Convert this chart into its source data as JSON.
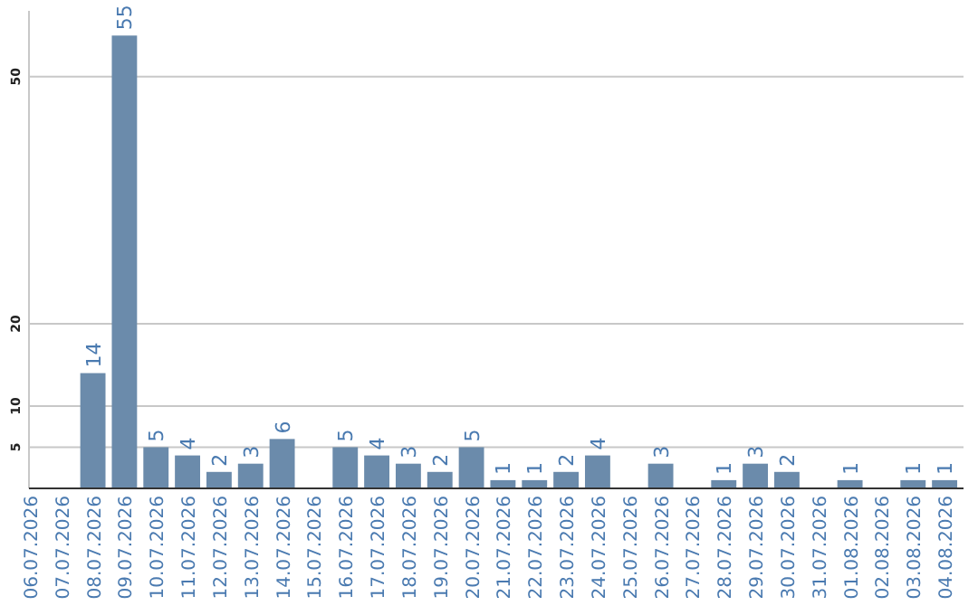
{
  "chart_data": {
    "type": "bar",
    "categories": [
      "06.07.2026",
      "07.07.2026",
      "08.07.2026",
      "09.07.2026",
      "10.07.2026",
      "11.07.2026",
      "12.07.2026",
      "13.07.2026",
      "14.07.2026",
      "15.07.2026",
      "16.07.2026",
      "17.07.2026",
      "18.07.2026",
      "19.07.2026",
      "20.07.2026",
      "21.07.2026",
      "22.07.2026",
      "23.07.2026",
      "24.07.2026",
      "25.07.2026",
      "26.07.2026",
      "27.07.2026",
      "28.07.2026",
      "29.07.2026",
      "30.07.2026",
      "31.07.2026",
      "01.08.2026",
      "02.08.2026",
      "03.08.2026",
      "04.08.2026"
    ],
    "values": [
      null,
      null,
      14,
      55,
      5,
      4,
      2,
      3,
      6,
      null,
      5,
      4,
      3,
      2,
      5,
      1,
      1,
      2,
      4,
      null,
      3,
      null,
      1,
      3,
      2,
      null,
      1,
      null,
      1,
      1
    ],
    "color": "#6b8bab",
    "ylim": [
      0,
      58
    ],
    "yticks": [
      5,
      10,
      20,
      50
    ],
    "grid": "y",
    "data_labels": true
  }
}
